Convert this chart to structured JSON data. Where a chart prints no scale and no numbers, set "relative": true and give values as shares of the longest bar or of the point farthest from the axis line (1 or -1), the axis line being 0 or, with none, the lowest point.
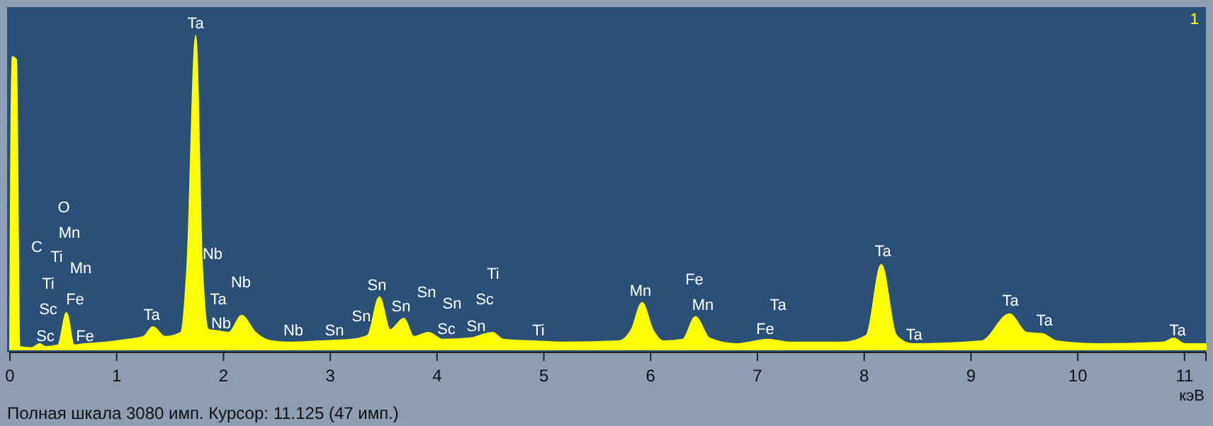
{
  "chart_data": {
    "type": "area",
    "relative": true,
    "color": "#ffff00",
    "xlabel": "кэВ",
    "tick_labels": "x",
    "grid": false,
    "xlim": [
      0,
      11.2
    ],
    "xticks": [
      0,
      1,
      2,
      3,
      4,
      5,
      6,
      7,
      8,
      9,
      10,
      11
    ],
    "x": [
      0,
      0.02,
      0.06,
      0.09,
      0.2,
      0.28,
      0.33,
      0.45,
      0.53,
      0.6,
      0.7,
      0.9,
      1.1,
      1.25,
      1.34,
      1.45,
      1.6,
      1.66,
      1.74,
      1.8,
      1.86,
      1.95,
      2.05,
      2.17,
      2.3,
      2.45,
      2.6,
      2.9,
      3.2,
      3.35,
      3.46,
      3.56,
      3.69,
      3.78,
      3.92,
      4.05,
      4.3,
      4.52,
      4.62,
      4.9,
      5.2,
      5.7,
      5.82,
      5.92,
      6.02,
      6.12,
      6.3,
      6.42,
      6.55,
      6.8,
      7.1,
      7.3,
      7.8,
      8.02,
      8.16,
      8.3,
      8.45,
      9.1,
      9.36,
      9.52,
      9.67,
      9.8,
      10.2,
      10.8,
      10.9,
      11.0,
      11.2
    ],
    "values": [
      0,
      0.932,
      0.923,
      0.009,
      0.005,
      0.018,
      0.009,
      0.014,
      0.117,
      0.014,
      0.018,
      0.023,
      0.032,
      0.041,
      0.072,
      0.041,
      0.054,
      0.27,
      1,
      0.27,
      0.063,
      0.059,
      0.054,
      0.108,
      0.054,
      0.027,
      0.023,
      0.027,
      0.032,
      0.045,
      0.167,
      0.063,
      0.099,
      0.041,
      0.054,
      0.032,
      0.036,
      0.054,
      0.032,
      0.027,
      0.023,
      0.027,
      0.063,
      0.149,
      0.063,
      0.027,
      0.032,
      0.104,
      0.036,
      0.018,
      0.032,
      0.023,
      0.023,
      0.045,
      0.27,
      0.045,
      0.018,
      0.027,
      0.113,
      0.054,
      0.05,
      0.027,
      0.018,
      0.023,
      0.036,
      0.018,
      0.018
    ],
    "annotations": [
      "C",
      "O",
      "Mn",
      "Ti",
      "Mn",
      "Ti",
      "Sc",
      "Fe",
      "Sc",
      "Fe",
      "Ta",
      "Ta",
      "Nb",
      "Nb",
      "Ta",
      "Nb",
      "Nb",
      "Sn",
      "Sn",
      "Sn",
      "Sn",
      "Sn",
      "Sn",
      "Sc",
      "Sn",
      "Sc",
      "Ti",
      "Ti",
      "Mn",
      "Fe",
      "Mn",
      "Fe",
      "Ta",
      "Ta",
      "Ta",
      "Ta",
      "Ta",
      "Ta",
      "1",
      "Полная шкала 3080 имп. Курсор: 11.125  (47 имп.)"
    ]
  }
}
